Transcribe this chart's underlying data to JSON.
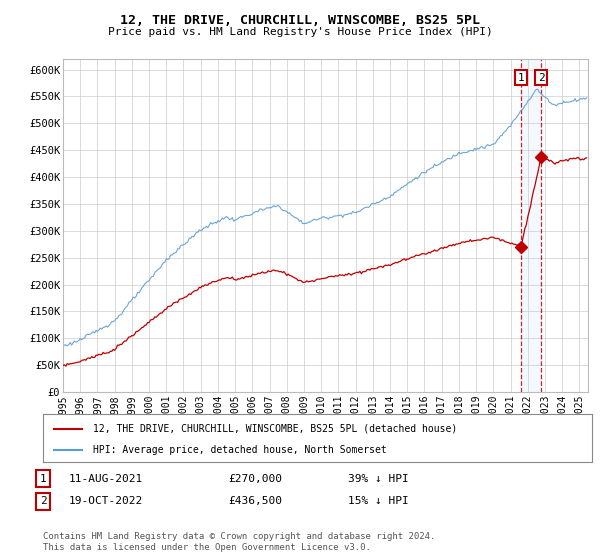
{
  "title": "12, THE DRIVE, CHURCHILL, WINSCOMBE, BS25 5PL",
  "subtitle": "Price paid vs. HM Land Registry's House Price Index (HPI)",
  "legend_line1": "12, THE DRIVE, CHURCHILL, WINSCOMBE, BS25 5PL (detached house)",
  "legend_line2": "HPI: Average price, detached house, North Somerset",
  "annotation1_label": "1",
  "annotation1_date": "11-AUG-2021",
  "annotation1_price": "£270,000",
  "annotation1_hpi": "39% ↓ HPI",
  "annotation2_label": "2",
  "annotation2_date": "19-OCT-2022",
  "annotation2_price": "£436,500",
  "annotation2_hpi": "15% ↓ HPI",
  "footnote": "Contains HM Land Registry data © Crown copyright and database right 2024.\nThis data is licensed under the Open Government Licence v3.0.",
  "hpi_color": "#5b9bd5",
  "price_color": "#c00000",
  "dashed_line_color": "#c00000",
  "highlight_color": "#ddeeff",
  "background_color": "#ffffff",
  "yticks": [
    0,
    50000,
    100000,
    150000,
    200000,
    250000,
    300000,
    350000,
    400000,
    450000,
    500000,
    550000,
    600000
  ],
  "ytick_labels": [
    "£0",
    "£50K",
    "£100K",
    "£150K",
    "£200K",
    "£250K",
    "£300K",
    "£350K",
    "£400K",
    "£450K",
    "£500K",
    "£550K",
    "£600K"
  ],
  "sale1_x": 2021.614,
  "sale1_y": 270000,
  "sale2_x": 2022.789,
  "sale2_y": 436500,
  "xmin": 1995,
  "xmax": 2025.5
}
